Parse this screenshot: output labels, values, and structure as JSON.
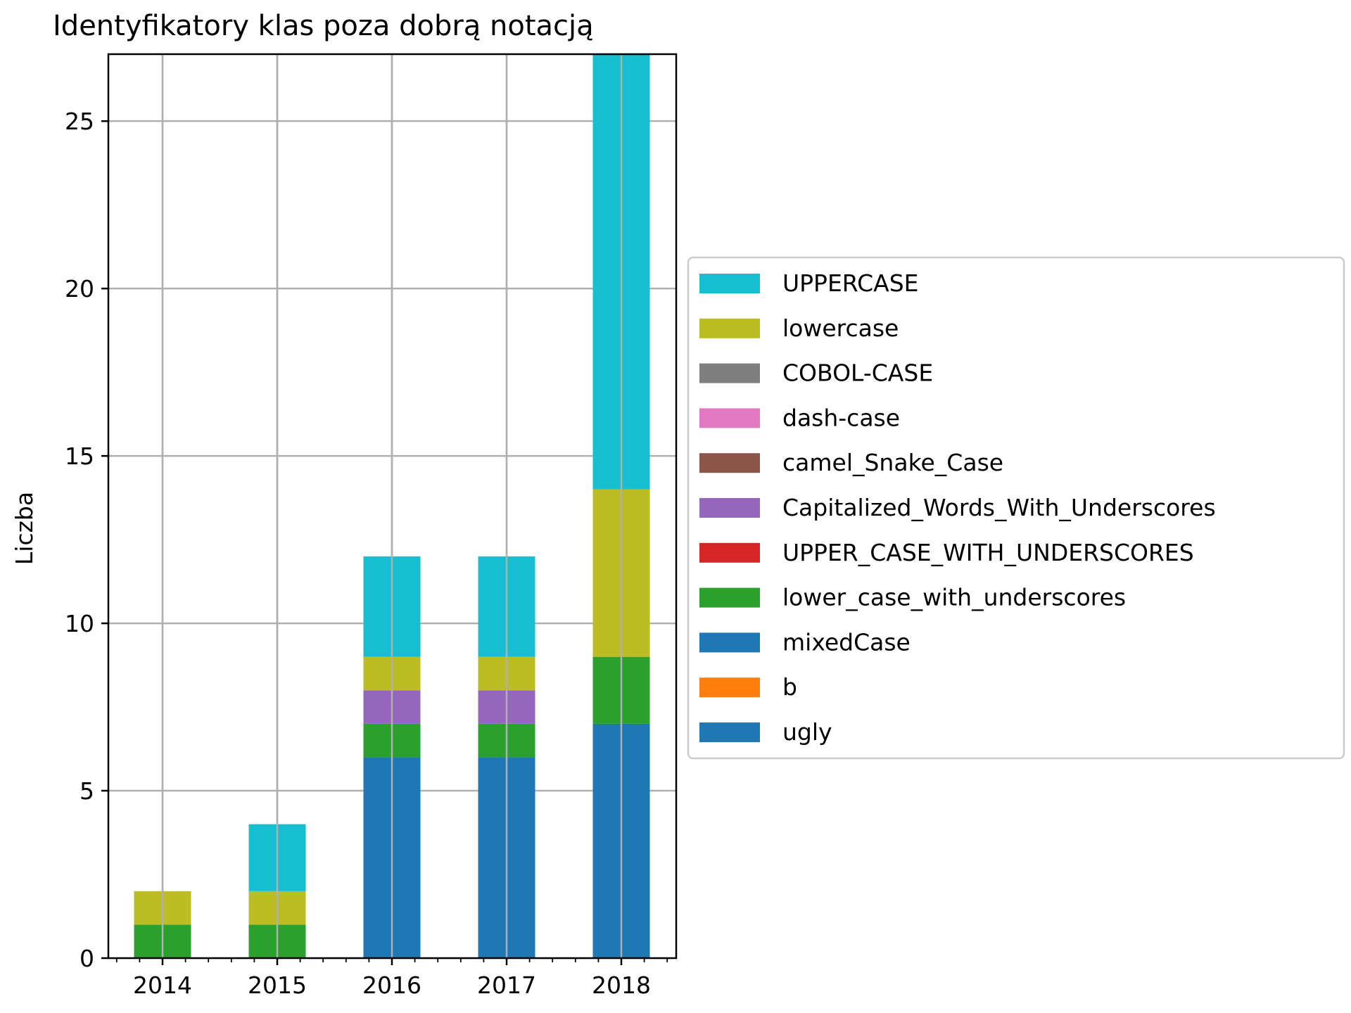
{
  "chart_data": {
    "type": "bar",
    "stacked": true,
    "title": "Identyfikatory klas poza dobrą notacją",
    "xlabel": "",
    "ylabel": "Liczba",
    "categories": [
      "2014",
      "2015",
      "2016",
      "2017",
      "2018"
    ],
    "ylim": [
      0,
      27
    ],
    "yticks": [
      0,
      5,
      10,
      15,
      20,
      25
    ],
    "grid": true,
    "legend_position": "right",
    "series": [
      {
        "name": "mixedCase",
        "color": "#1f77b4",
        "values": [
          0,
          0,
          6,
          6,
          7
        ]
      },
      {
        "name": "UPPERCASE",
        "color": "#17becf",
        "values": [
          0,
          2,
          3,
          3,
          13
        ]
      },
      {
        "name": "lowercase",
        "color": "#bcbd22",
        "values": [
          1,
          1,
          1,
          1,
          5
        ]
      },
      {
        "name": "COBOL-CASE",
        "color": "#7f7f7f",
        "values": [
          0,
          0,
          0,
          0,
          0
        ]
      },
      {
        "name": "dash-case",
        "color": "#e377c2",
        "values": [
          0,
          0,
          0,
          0,
          0
        ]
      },
      {
        "name": "camel_Snake_Case",
        "color": "#8c564b",
        "values": [
          0,
          0,
          0,
          0,
          0
        ]
      },
      {
        "name": "Capitalized_Words_With_Underscores",
        "color": "#9467bd",
        "values": [
          0,
          0,
          1,
          1,
          0
        ]
      },
      {
        "name": "UPPER_CASE_WITH_UNDERSCORES",
        "color": "#d62728",
        "values": [
          0,
          0,
          0,
          0,
          0
        ]
      },
      {
        "name": "lower_case_with_underscores",
        "color": "#2ca02c",
        "values": [
          1,
          1,
          1,
          1,
          2
        ]
      },
      {
        "name": "b",
        "color": "#ff7f0e",
        "values": [
          0,
          0,
          0,
          0,
          0
        ]
      },
      {
        "name": "ugly",
        "color": "#1f77b4",
        "values": [
          0,
          0,
          0,
          0,
          0
        ]
      }
    ],
    "stack_order": [
      "ugly",
      "b",
      "mixedCase",
      "lower_case_with_underscores",
      "UPPER_CASE_WITH_UNDERSCORES",
      "Capitalized_Words_With_Underscores",
      "camel_Snake_Case",
      "dash-case",
      "COBOL-CASE",
      "lowercase",
      "UPPERCASE"
    ]
  }
}
